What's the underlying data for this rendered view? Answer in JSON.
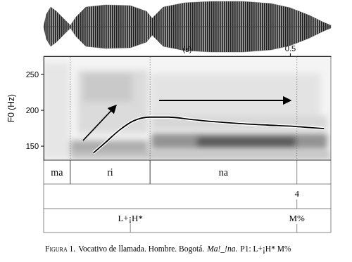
{
  "chart_data": {
    "type": "line",
    "ylabel": "F0 (Hz)",
    "xlabel": "(s)",
    "xlim": [
      0,
      0.583
    ],
    "xticks": [
      0.5
    ],
    "ylim": [
      130,
      275
    ],
    "yticks": [
      150,
      200,
      250
    ],
    "x": [
      0.101,
      0.126,
      0.154,
      0.183,
      0.216,
      0.254,
      0.297,
      0.34,
      0.397,
      0.454,
      0.511,
      0.569
    ],
    "values": [
      140,
      155,
      172,
      185,
      190,
      190,
      187,
      184,
      181,
      179,
      177,
      174
    ],
    "color": "#000000",
    "tiers": [
      {
        "intervals": [
          {
            "label": "ma",
            "start": 0,
            "end": 0.054
          },
          {
            "label": "ri",
            "start": 0.054,
            "end": 0.216
          },
          {
            "label": "na",
            "start": 0.216,
            "end": 0.514
          }
        ]
      },
      {
        "points": [
          {
            "label": "4",
            "time": 0.514
          }
        ]
      },
      {
        "points": [
          {
            "label": "L+¡H*",
            "time": 0.176
          },
          {
            "label": "M%",
            "time": 0.514
          }
        ]
      }
    ],
    "caption": [
      "Figura 1.",
      "Vocativo de llamada. Hombre. Bogotá.",
      "Ma!_!na.",
      "P1: L+¡H* M%"
    ]
  }
}
